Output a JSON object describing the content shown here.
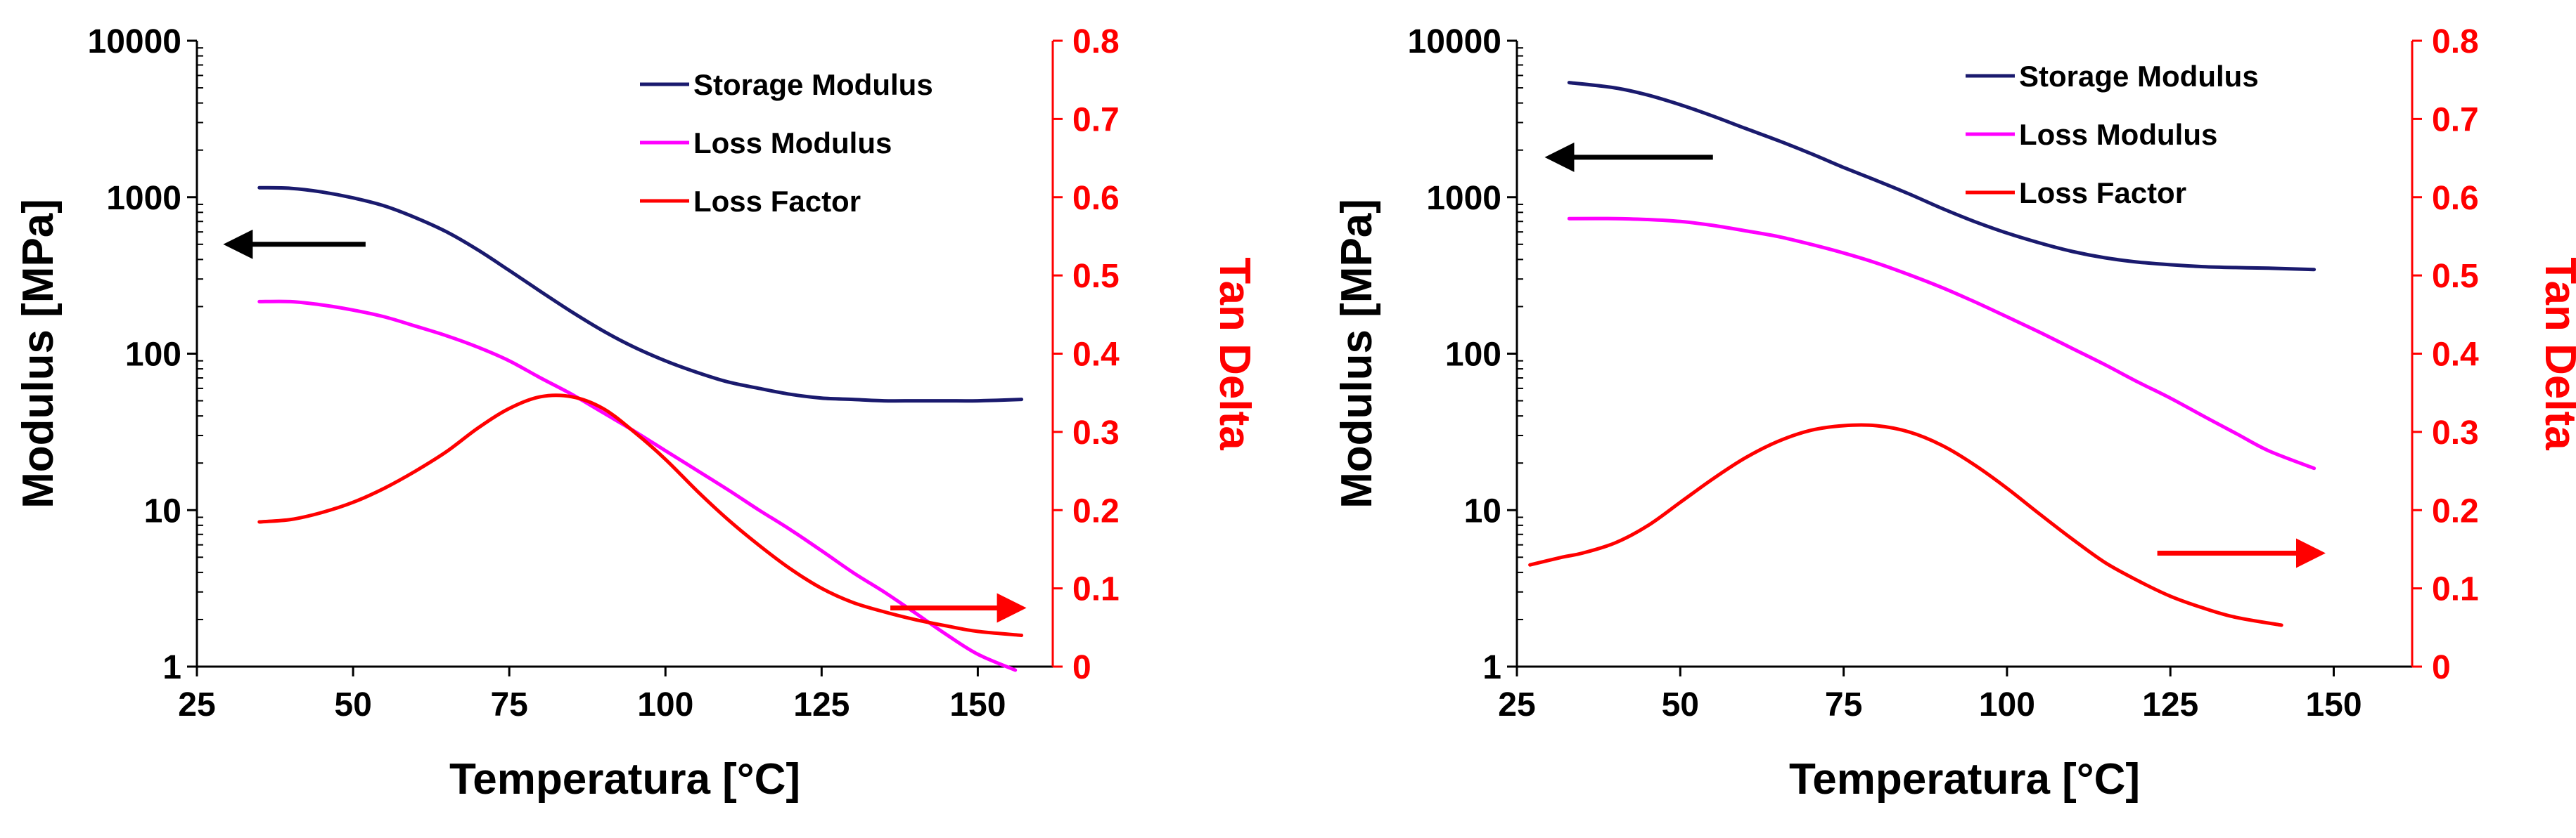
{
  "colors": {
    "storage": "#1a1a6e",
    "loss": "#ff00ff",
    "lossfactor": "#ff0000",
    "axis_left": "#000000",
    "axis_right": "#ff0000",
    "arrow_left": "#000000",
    "arrow_right": "#ff0000"
  },
  "chart_data": [
    {
      "type": "line",
      "x_axis": {
        "label": "Temperatura [°C]",
        "min": 25,
        "max": 162,
        "ticks": [
          25,
          50,
          75,
          100,
          125,
          150
        ],
        "tick_labels": [
          "25",
          "50",
          "75",
          "100",
          "125",
          "150"
        ]
      },
      "y_left": {
        "label": "Modulus [MPa]",
        "scale": "log",
        "min": 1,
        "max": 10000,
        "ticks": [
          1,
          10,
          100,
          1000,
          10000
        ],
        "tick_labels": [
          "1",
          "10",
          "100",
          "1000",
          "10000"
        ]
      },
      "y_right": {
        "label": "Tan Delta",
        "min": 0,
        "max": 0.8,
        "ticks": [
          0,
          0.1,
          0.2,
          0.3,
          0.4,
          0.5,
          0.6,
          0.7,
          0.8
        ],
        "tick_labels": [
          "0",
          "0.1",
          "0.2",
          "0.3",
          "0.4",
          "0.5",
          "0.6",
          "0.7",
          "0.8"
        ]
      },
      "legend": {
        "position": "top-right",
        "entries": [
          "Storage Modulus",
          "Loss Modulus",
          "Loss Factor"
        ]
      },
      "series": [
        {
          "name": "Storage Modulus",
          "axis": "left",
          "color_key": "storage",
          "x": [
            35,
            40,
            45,
            50,
            55,
            60,
            65,
            70,
            75,
            80,
            85,
            90,
            95,
            100,
            105,
            110,
            115,
            120,
            125,
            130,
            135,
            140,
            145,
            150,
            157
          ],
          "y": [
            1150,
            1140,
            1080,
            990,
            880,
            740,
            600,
            460,
            340,
            250,
            185,
            140,
            110,
            90,
            76,
            66,
            60,
            55,
            52,
            51,
            50,
            50,
            50,
            50,
            51
          ]
        },
        {
          "name": "Loss Modulus",
          "axis": "left",
          "color_key": "loss",
          "x": [
            35,
            40,
            45,
            50,
            55,
            60,
            65,
            70,
            75,
            80,
            85,
            90,
            95,
            100,
            105,
            110,
            115,
            120,
            125,
            130,
            135,
            140,
            145,
            150,
            156
          ],
          "y": [
            215,
            215,
            205,
            190,
            172,
            150,
            130,
            110,
            90,
            70,
            55,
            42,
            32,
            24,
            18,
            13.5,
            10,
            7.5,
            5.5,
            4,
            3,
            2.2,
            1.6,
            1.2,
            0.95
          ]
        },
        {
          "name": "Loss Factor",
          "axis": "right",
          "color_key": "lossfactor",
          "x": [
            35,
            40,
            45,
            50,
            55,
            60,
            65,
            70,
            75,
            80,
            85,
            90,
            95,
            100,
            105,
            110,
            115,
            120,
            125,
            130,
            135,
            140,
            145,
            150,
            157
          ],
          "y": [
            0.185,
            0.188,
            0.197,
            0.21,
            0.228,
            0.25,
            0.275,
            0.305,
            0.33,
            0.345,
            0.345,
            0.33,
            0.3,
            0.265,
            0.225,
            0.188,
            0.155,
            0.125,
            0.1,
            0.082,
            0.07,
            0.06,
            0.052,
            0.045,
            0.04
          ]
        }
      ],
      "annotations": [
        {
          "type": "arrow",
          "direction": "left",
          "axis": "left",
          "color_key": "arrow_left",
          "x_from": 52,
          "x_to": 30,
          "y": 500
        },
        {
          "type": "arrow",
          "direction": "right",
          "axis": "right",
          "color_key": "arrow_right",
          "x_from": 136,
          "x_to": 157,
          "y": 0.075
        }
      ]
    },
    {
      "type": "line",
      "x_axis": {
        "label": "Temperatura [°C]",
        "min": 25,
        "max": 162,
        "ticks": [
          25,
          50,
          75,
          100,
          125,
          150
        ],
        "tick_labels": [
          "25",
          "50",
          "75",
          "100",
          "125",
          "150"
        ]
      },
      "y_left": {
        "label": "Modulus [MPa]",
        "scale": "log",
        "min": 1,
        "max": 10000,
        "ticks": [
          1,
          10,
          100,
          1000,
          10000
        ],
        "tick_labels": [
          "1",
          "10",
          "100",
          "1000",
          "10000"
        ]
      },
      "y_right": {
        "label": "Tan Delta",
        "min": 0,
        "max": 0.8,
        "ticks": [
          0,
          0.1,
          0.2,
          0.3,
          0.4,
          0.5,
          0.6,
          0.7,
          0.8
        ],
        "tick_labels": [
          "0",
          "0.1",
          "0.2",
          "0.3",
          "0.4",
          "0.5",
          "0.6",
          "0.7",
          "0.8"
        ]
      },
      "legend": {
        "position": "top-right",
        "entries": [
          "Storage Modulus",
          "Loss Modulus",
          "Loss Factor"
        ]
      },
      "series": [
        {
          "name": "Storage Modulus",
          "axis": "left",
          "color_key": "storage",
          "x": [
            33,
            40,
            45,
            50,
            55,
            60,
            65,
            70,
            75,
            80,
            85,
            90,
            95,
            100,
            105,
            110,
            115,
            120,
            125,
            130,
            135,
            140,
            147
          ],
          "y": [
            5400,
            5000,
            4500,
            3900,
            3300,
            2750,
            2300,
            1900,
            1550,
            1280,
            1050,
            850,
            700,
            590,
            510,
            450,
            410,
            385,
            370,
            360,
            355,
            352,
            345
          ]
        },
        {
          "name": "Loss Modulus",
          "axis": "left",
          "color_key": "loss",
          "x": [
            33,
            40,
            45,
            50,
            55,
            60,
            65,
            70,
            75,
            80,
            85,
            90,
            95,
            100,
            105,
            110,
            115,
            120,
            125,
            130,
            135,
            140,
            147
          ],
          "y": [
            730,
            730,
            720,
            700,
            660,
            610,
            560,
            500,
            440,
            380,
            320,
            265,
            215,
            172,
            137,
            108,
            85,
            66,
            52,
            40,
            31,
            24,
            18.5
          ]
        },
        {
          "name": "Loss Factor",
          "axis": "right",
          "color_key": "lossfactor",
          "x": [
            27,
            32,
            35,
            40,
            45,
            50,
            55,
            60,
            65,
            70,
            75,
            80,
            85,
            90,
            95,
            100,
            105,
            110,
            115,
            120,
            125,
            130,
            135,
            142
          ],
          "y": [
            0.13,
            0.14,
            0.145,
            0.158,
            0.18,
            0.21,
            0.24,
            0.267,
            0.288,
            0.302,
            0.308,
            0.308,
            0.3,
            0.283,
            0.258,
            0.228,
            0.195,
            0.163,
            0.133,
            0.11,
            0.09,
            0.075,
            0.063,
            0.053
          ]
        }
      ],
      "annotations": [
        {
          "type": "arrow",
          "direction": "left",
          "axis": "left",
          "color_key": "arrow_left",
          "x_from": 55,
          "x_to": 30,
          "y": 1800
        },
        {
          "type": "arrow",
          "direction": "right",
          "axis": "right",
          "color_key": "arrow_right",
          "x_from": 123,
          "x_to": 148,
          "y": 0.145
        }
      ]
    }
  ]
}
